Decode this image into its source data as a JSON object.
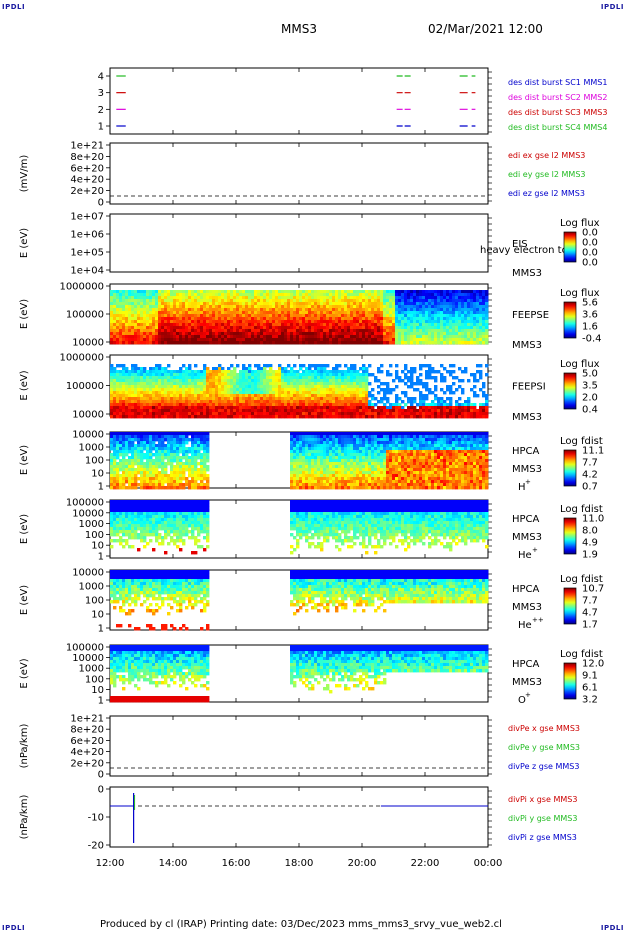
{
  "corner_labels": [
    "IPDLI",
    "IPDLI",
    "IPDLI",
    "IPDLI"
  ],
  "header": {
    "spacecraft": "MMS3",
    "datetime": "02/Mar/2021 12:00"
  },
  "footer": "Produced by cl (IRAP)   Printing date: 03/Dec/2023   mms_mms3_srvy_vue_web2.cl",
  "colors": {
    "red": "#cc0000",
    "green": "#22bb22",
    "blue": "#0000cc",
    "magenta": "#dd00dd",
    "purple": "#6600cc"
  },
  "chart_data": {
    "type": "heatmap",
    "x_ticks": [
      "12:00",
      "14:00",
      "16:00",
      "18:00",
      "20:00",
      "22:00",
      "00:00"
    ],
    "x_range": [
      12,
      24
    ],
    "panels": [
      {
        "id": "burst",
        "type": "table",
        "ytick_labels": [
          "4",
          "3",
          "2",
          "1"
        ],
        "ylabel": "",
        "legend": [
          {
            "text": "des dist burst SC1 MMS1",
            "color": "#0000cc"
          },
          {
            "text": "des dist burst SC2 MMS2",
            "color": "#dd00dd"
          },
          {
            "text": "des dist burst SC3 MMS3",
            "color": "#cc0000"
          },
          {
            "text": "des dist burst SC4 MMS4",
            "color": "#22bb22"
          }
        ],
        "segments": [
          {
            "level": 4,
            "color": "#22bb22",
            "intervals": [
              [
                12.2,
                12.5
              ],
              [
                21.1,
                21.6
              ],
              [
                23.1,
                23.6
              ]
            ]
          },
          {
            "level": 3,
            "color": "#cc0000",
            "intervals": [
              [
                12.2,
                12.5
              ],
              [
                21.1,
                21.6
              ],
              [
                23.1,
                23.6
              ]
            ]
          },
          {
            "level": 2,
            "color": "#dd00dd",
            "intervals": [
              [
                12.2,
                12.5
              ],
              [
                21.1,
                21.6
              ],
              [
                23.1,
                23.6
              ]
            ]
          },
          {
            "level": 1,
            "color": "#0000cc",
            "intervals": [
              [
                12.2,
                12.5
              ],
              [
                21.1,
                21.6
              ],
              [
                23.1,
                23.6
              ]
            ]
          }
        ]
      },
      {
        "id": "edi",
        "type": "line",
        "ytick_labels": [
          "1e+21",
          "8e+20",
          "6e+20",
          "4e+20",
          "2e+20",
          "0"
        ],
        "ylabel": "(mV/m)",
        "legend": [
          {
            "text": "edi ex gse l2 MMS3",
            "color": "#cc0000"
          },
          {
            "text": "edi ey gse l2 MMS3",
            "color": "#22bb22"
          },
          {
            "text": "edi ez gse l2 MMS3",
            "color": "#0000cc"
          }
        ]
      },
      {
        "id": "eis",
        "type": "heatmap",
        "ytick_labels": [
          "1e+07",
          "1e+06",
          "1e+05",
          "1e+04"
        ],
        "ylabel": "E (eV)",
        "name": "EIS",
        "sub": "MMS3",
        "overlay": "heavy electron to",
        "cbar_title": "Log flux",
        "cbar_ticks": [
          "0.0",
          "0.0",
          "0.0",
          "0.0"
        ]
      },
      {
        "id": "feepse",
        "type": "heatmap",
        "ytick_labels": [
          "1000000",
          "100000",
          "10000"
        ],
        "ylabel": "E (eV)",
        "name": "FEEPSE",
        "sub": "MMS3",
        "cbar_title": "Log flux",
        "cbar_ticks": [
          "5.6",
          "3.6",
          "1.6",
          "-0.4"
        ]
      },
      {
        "id": "feepsi",
        "type": "heatmap",
        "ytick_labels": [
          "1000000",
          "100000",
          "10000"
        ],
        "ylabel": "E (eV)",
        "name": "FEEPSI",
        "sub": "MMS3",
        "cbar_title": "Log flux",
        "cbar_ticks": [
          "5.0",
          "3.5",
          "2.0",
          "0.4"
        ]
      },
      {
        "id": "hpca_h",
        "type": "heatmap",
        "ytick_labels": [
          "10000",
          "1000",
          "100",
          "10",
          "1"
        ],
        "ylabel": "E (eV)",
        "name": "HPCA",
        "sub": "MMS3",
        "species": "H",
        "sup": "+",
        "cbar_title": "Log fdist",
        "cbar_ticks": [
          "11.1",
          "7.7",
          "4.2",
          "0.7"
        ]
      },
      {
        "id": "hpca_he",
        "type": "heatmap",
        "ytick_labels": [
          "100000",
          "10000",
          "1000",
          "100",
          "10",
          "1"
        ],
        "ylabel": "E (eV)",
        "name": "HPCA",
        "sub": "MMS3",
        "species": "He",
        "sup": "+",
        "cbar_title": "Log fdist",
        "cbar_ticks": [
          "11.0",
          "8.0",
          "4.9",
          "1.9"
        ]
      },
      {
        "id": "hpca_he2",
        "type": "heatmap",
        "ytick_labels": [
          "10000",
          "1000",
          "100",
          "10",
          "1"
        ],
        "ylabel": "E (eV)",
        "name": "HPCA",
        "sub": "MMS3",
        "species": "He",
        "sup": "++",
        "cbar_title": "Log fdist",
        "cbar_ticks": [
          "10.7",
          "7.7",
          "4.7",
          "1.7"
        ]
      },
      {
        "id": "hpca_o",
        "type": "heatmap",
        "ytick_labels": [
          "100000",
          "10000",
          "1000",
          "100",
          "10",
          "1"
        ],
        "ylabel": "E (eV)",
        "name": "HPCA",
        "sub": "MMS3",
        "species": "O",
        "sup": "+",
        "cbar_title": "Log fdist",
        "cbar_ticks": [
          "12.0",
          "9.1",
          "6.1",
          "3.2"
        ]
      },
      {
        "id": "divpe",
        "type": "line",
        "ytick_labels": [
          "1e+21",
          "8e+20",
          "6e+20",
          "4e+20",
          "2e+20",
          "0"
        ],
        "ylabel": "(nPa/km)",
        "legend": [
          {
            "text": "divPe x gse MMS3",
            "color": "#cc0000"
          },
          {
            "text": "divPe y gse MMS3",
            "color": "#22bb22"
          },
          {
            "text": "divPe z gse MMS3",
            "color": "#0000cc"
          }
        ]
      },
      {
        "id": "divpi",
        "type": "line",
        "ytick_labels": [
          "0",
          "-10",
          "-20"
        ],
        "ylabel": "(nPa/km)",
        "legend": [
          {
            "text": "divPi x gse MMS3",
            "color": "#cc0000"
          },
          {
            "text": "divPi y gse MMS3",
            "color": "#22bb22"
          },
          {
            "text": "divPi z gse MMS3",
            "color": "#0000cc"
          }
        ]
      }
    ]
  }
}
